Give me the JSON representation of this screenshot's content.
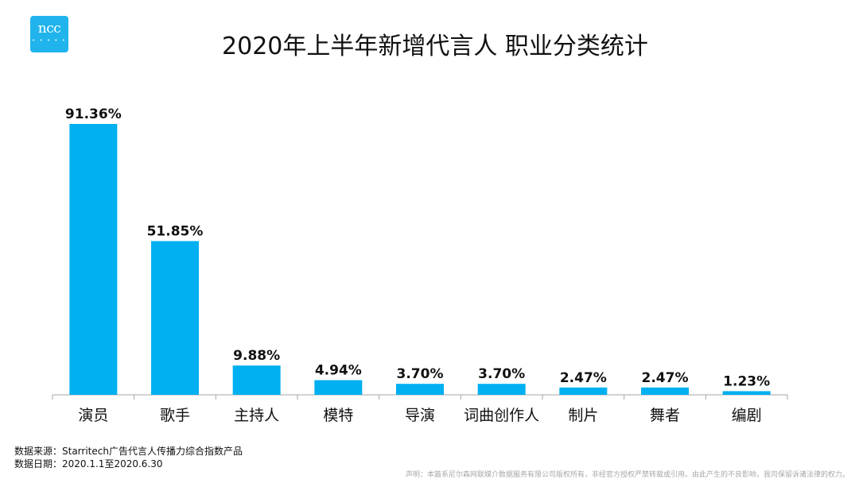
{
  "logo": {
    "text": "ncc",
    "dots": "• • • • •"
  },
  "title": "2020年上半年新增代言人 职业分类统计",
  "colors": {
    "bar": "#00b0f0",
    "axis": "#a6a6a6",
    "text": "#111111",
    "brand": "#21b4ec"
  },
  "chart_data": {
    "type": "bar",
    "title": "2020年上半年新增代言人 职业分类统计",
    "categories": [
      "演员",
      "歌手",
      "主持人",
      "模特",
      "导演",
      "词曲创作人",
      "制片",
      "舞者",
      "编剧"
    ],
    "values": [
      91.36,
      51.85,
      9.88,
      4.94,
      3.7,
      3.7,
      2.47,
      2.47,
      1.23
    ],
    "data_labels": [
      "91.36%",
      "51.85%",
      "9.88%",
      "4.94%",
      "3.70%",
      "3.70%",
      "2.47%",
      "2.47%",
      "1.23%"
    ],
    "unit": "%",
    "ylim": [
      0,
      100
    ],
    "grid": false,
    "legend": "none"
  },
  "footer": {
    "source": "数据来源：Starritech广告代言人传播力综合指数产品",
    "date": "数据日期：2020.1.1至2020.6.30",
    "disclaimer": "声明：本篇系尼尔森网联媒介数据服务有限公司版权所有，非经官方授权严禁转载或引用。由此产生的不良影响，我司保留诉诸法律的权力。"
  }
}
